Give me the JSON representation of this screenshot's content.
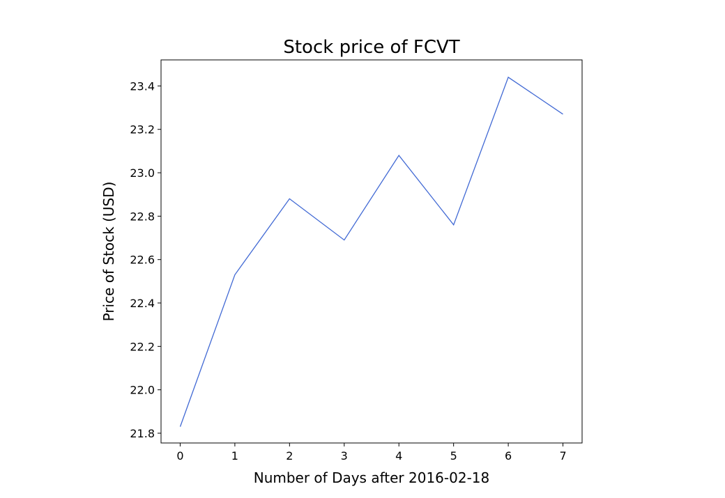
{
  "chart_data": {
    "type": "line",
    "title": "Stock price of FCVT",
    "xlabel": "Number of Days after 2016-02-18",
    "ylabel": "Price of Stock (USD)",
    "x": [
      0,
      1,
      2,
      3,
      4,
      5,
      6,
      7
    ],
    "series": [
      {
        "values": [
          21.83,
          22.53,
          22.88,
          22.69,
          23.08,
          22.76,
          23.44,
          23.27
        ],
        "color": "#4169d4"
      }
    ],
    "xlim": [
      -0.35,
      7.35
    ],
    "ylim": [
      21.755,
      23.52
    ],
    "xticks": [
      0,
      1,
      2,
      3,
      4,
      5,
      6,
      7
    ],
    "xtick_labels": [
      "0",
      "1",
      "2",
      "3",
      "4",
      "5",
      "6",
      "7"
    ],
    "yticks": [
      21.8,
      22.0,
      22.2,
      22.4,
      22.6,
      22.8,
      23.0,
      23.2,
      23.4
    ],
    "ytick_labels": [
      "21.8",
      "22.0",
      "22.2",
      "22.4",
      "22.6",
      "22.8",
      "23.0",
      "23.2",
      "23.4"
    ],
    "grid": false,
    "legend": "none"
  }
}
